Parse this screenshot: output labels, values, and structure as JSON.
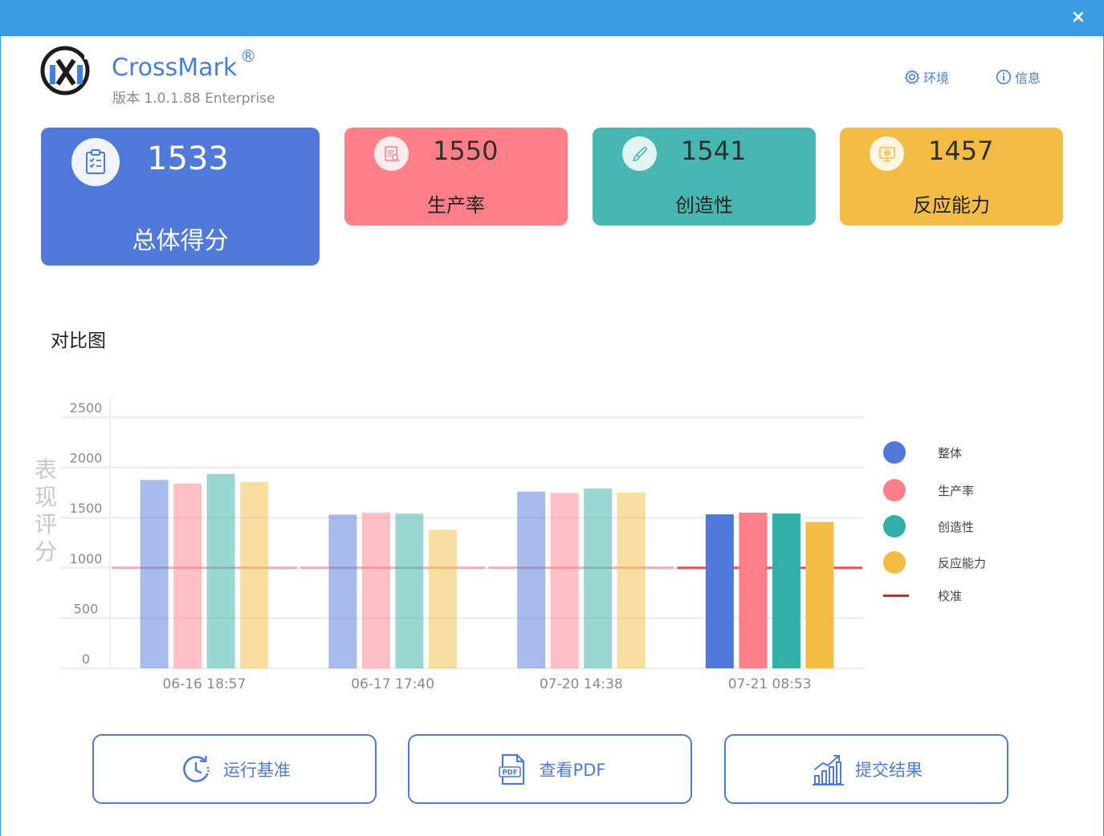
{
  "window": {
    "close_label": "×"
  },
  "app": {
    "name": "CrossMark",
    "registered": "®",
    "version": "版本 1.0.1.88 Enterprise"
  },
  "header_links": {
    "environment": "环境",
    "info": "信息"
  },
  "scores": {
    "overall": {
      "value": "1533",
      "label": "总体得分",
      "color": "#4f7ad9",
      "icon": "clipboard-check-icon"
    },
    "productivity": {
      "value": "1550",
      "label": "生产率",
      "color": "#ff7f89",
      "icon": "document-search-icon"
    },
    "creativity": {
      "value": "1541",
      "label": "创造性",
      "color": "#46b8b1",
      "icon": "brush-icon"
    },
    "responsiveness": {
      "value": "1457",
      "label": "反应能力",
      "color": "#f3bd45",
      "icon": "monitor-icon"
    }
  },
  "compare": {
    "title": "对比图"
  },
  "chart_data": {
    "type": "bar",
    "ylabel": "表现评分",
    "ylim": [
      0,
      2500
    ],
    "yticks": [
      0,
      500,
      1000,
      1500,
      2000,
      2500
    ],
    "categories": [
      "06-16 18:57",
      "06-17 17:40",
      "07-20 14:38",
      "07-21 08:53"
    ],
    "series": [
      {
        "name": "整体",
        "color": "#4f7ad9",
        "values": [
          1875,
          1530,
          1760,
          1533
        ]
      },
      {
        "name": "生产率",
        "color": "#ff7f89",
        "values": [
          1840,
          1550,
          1745,
          1550
        ]
      },
      {
        "name": "创造性",
        "color": "#33afa8",
        "values": [
          1935,
          1540,
          1790,
          1541
        ]
      },
      {
        "name": "反应能力",
        "color": "#f3bd45",
        "values": [
          1855,
          1380,
          1750,
          1457
        ]
      }
    ],
    "reference": {
      "name": "校准",
      "value": 1000,
      "color": "#e02020"
    },
    "highlight_category": 3,
    "grid": true,
    "legend_position": "right"
  },
  "buttons": {
    "run": "运行基准",
    "pdf": "查看PDF",
    "submit": "提交结果"
  }
}
